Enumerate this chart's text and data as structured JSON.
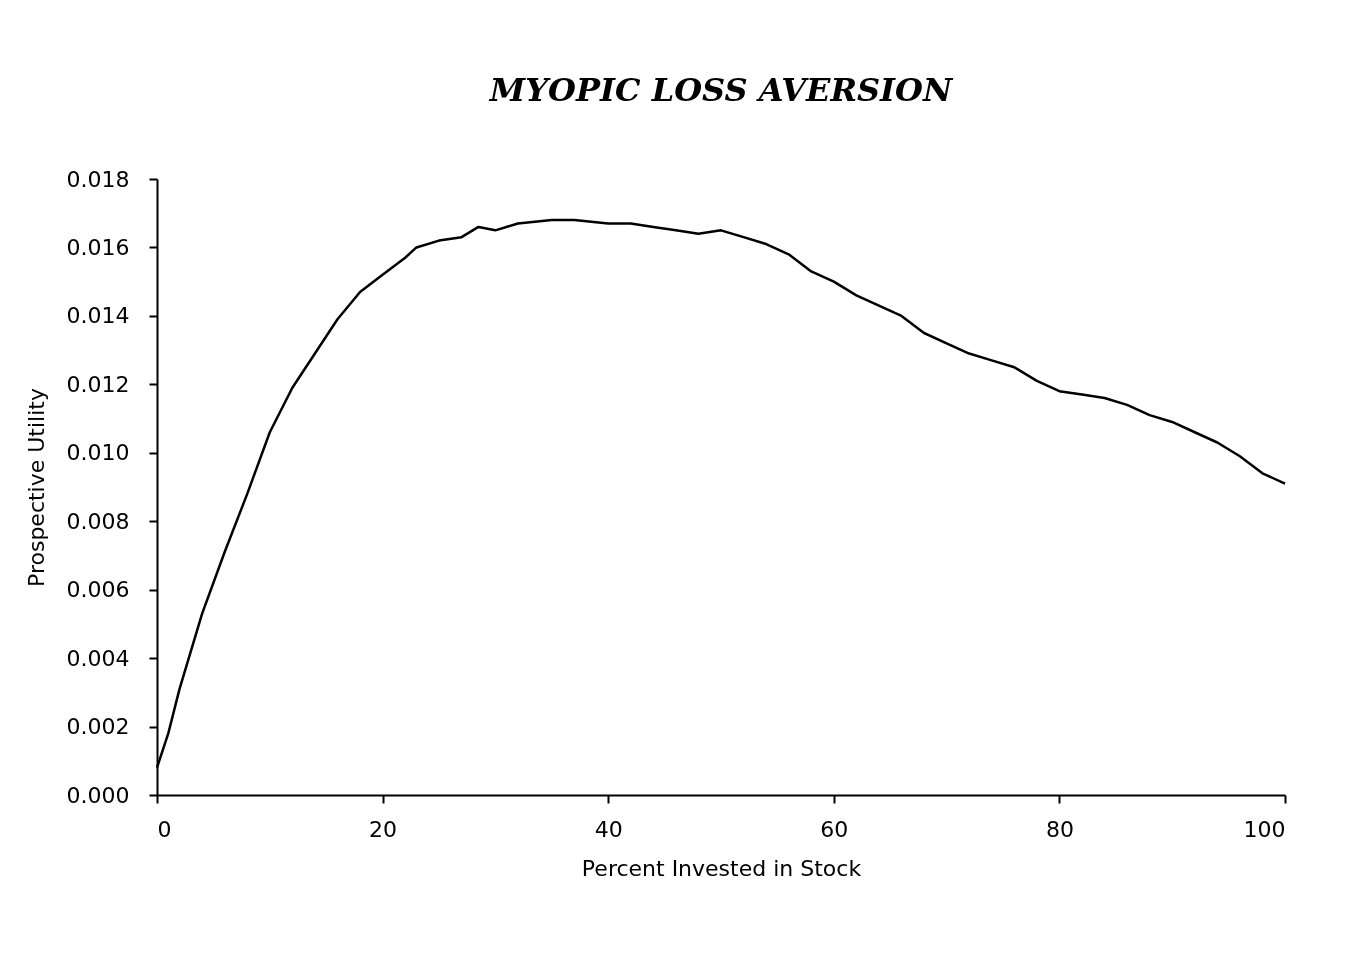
{
  "chart_data": {
    "type": "line",
    "title": "MYOPIC LOSS AVERSION",
    "xlabel": "Percent Invested in Stock",
    "ylabel": "Prospective Utility",
    "x": [
      0,
      1,
      2,
      4,
      6,
      8,
      10,
      12,
      14,
      16,
      18,
      20,
      22,
      23,
      25,
      27,
      28.5,
      30,
      32,
      35,
      37,
      40,
      42,
      44,
      46,
      48,
      50,
      52,
      54,
      56,
      58,
      60,
      62,
      64,
      66,
      68,
      70,
      72,
      74,
      76,
      78,
      80,
      82,
      84,
      86,
      88,
      90,
      92,
      94,
      96,
      98,
      100
    ],
    "series": [
      {
        "color": "#000000",
        "values": [
          0.0008,
          0.0018,
          0.0031,
          0.0053,
          0.0071,
          0.0088,
          0.0106,
          0.0119,
          0.0129,
          0.0139,
          0.0147,
          0.0152,
          0.0157,
          0.016,
          0.0162,
          0.0163,
          0.0166,
          0.0165,
          0.0167,
          0.0168,
          0.0168,
          0.0167,
          0.0167,
          0.0166,
          0.0165,
          0.0164,
          0.0165,
          0.0163,
          0.0161,
          0.0158,
          0.0153,
          0.015,
          0.0146,
          0.0143,
          0.014,
          0.0135,
          0.0132,
          0.0129,
          0.0127,
          0.0125,
          0.0121,
          0.0118,
          0.0117,
          0.0116,
          0.0114,
          0.0111,
          0.0109,
          0.0106,
          0.0103,
          0.0099,
          0.0094,
          0.0091
        ]
      }
    ],
    "xlim": [
      0,
      100
    ],
    "xticks": [
      0,
      20,
      40,
      60,
      80,
      100
    ],
    "ylim": [
      0,
      0.018
    ],
    "yticks": [
      {
        "value": 0,
        "label": "0.000"
      },
      {
        "value": 0.002,
        "label": "0.002"
      },
      {
        "value": 0.004,
        "label": "0.004"
      },
      {
        "value": 0.006,
        "label": "0.006"
      },
      {
        "value": 0.008,
        "label": "0.008"
      },
      {
        "value": 0.01,
        "label": "0.010"
      },
      {
        "value": 0.012,
        "label": "0.012"
      },
      {
        "value": 0.014,
        "label": "0.014"
      },
      {
        "value": 0.016,
        "label": "0.016"
      },
      {
        "value": 0.018,
        "label": "0.018"
      }
    ],
    "line_style": "solid"
  }
}
